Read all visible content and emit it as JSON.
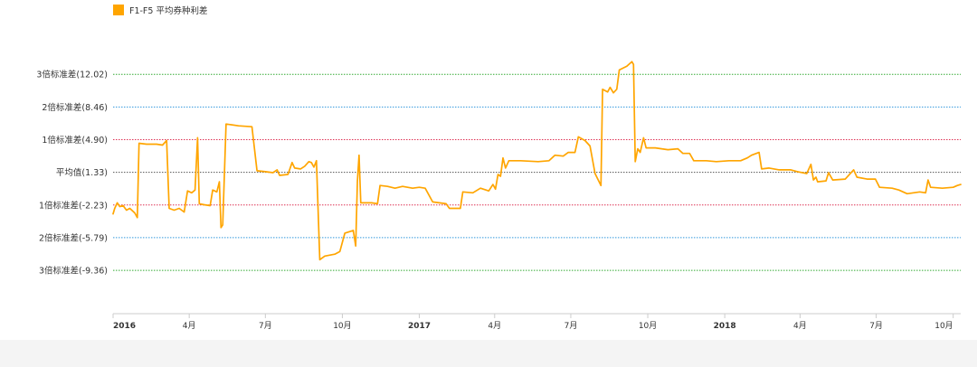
{
  "legend": {
    "label": "F1-F5 平均券种利差",
    "color": "#FFA500"
  },
  "chart_data": {
    "type": "line",
    "title": "",
    "xlabel": "",
    "ylabel": "",
    "ylim": [
      -13,
      15
    ],
    "grid": false,
    "legend_position": "top-left",
    "x_ticks": [
      {
        "label": "2016",
        "date": "2016-01-01",
        "year": true
      },
      {
        "label": "4月",
        "date": "2016-04-01",
        "year": false
      },
      {
        "label": "7月",
        "date": "2016-07-01",
        "year": false
      },
      {
        "label": "10月",
        "date": "2016-10-01",
        "year": false
      },
      {
        "label": "2017",
        "date": "2017-01-01",
        "year": true
      },
      {
        "label": "4月",
        "date": "2017-04-01",
        "year": false
      },
      {
        "label": "7月",
        "date": "2017-07-01",
        "year": false
      },
      {
        "label": "10月",
        "date": "2017-10-01",
        "year": false
      },
      {
        "label": "2018",
        "date": "2018-01-01",
        "year": true
      },
      {
        "label": "4月",
        "date": "2018-04-01",
        "year": false
      },
      {
        "label": "7月",
        "date": "2018-07-01",
        "year": false
      },
      {
        "label": "10月",
        "date": "2018-10-01",
        "year": false
      }
    ],
    "reference_lines": [
      {
        "label": "3倍标准差(12.02)",
        "value": 12.02,
        "color": "#33AA33"
      },
      {
        "label": "2倍标准差(8.46)",
        "value": 8.46,
        "color": "#3399DD"
      },
      {
        "label": "1倍标准差(4.90)",
        "value": 4.9,
        "color": "#DD3355"
      },
      {
        "label": "平均值(1.33)",
        "value": 1.33,
        "color": "#555555"
      },
      {
        "label": "1倍标准差(-2.23)",
        "value": -2.23,
        "color": "#DD3355"
      },
      {
        "label": "2倍标准差(-5.79)",
        "value": -5.79,
        "color": "#3399DD"
      },
      {
        "label": "3倍标准差(-9.36)",
        "value": -9.36,
        "color": "#33AA33"
      }
    ],
    "series": [
      {
        "color": "#FFA500",
        "points": [
          [
            "2016-01-01",
            -3.2
          ],
          [
            "2016-01-03",
            -2.6
          ],
          [
            "2016-01-06",
            -2.0
          ],
          [
            "2016-01-09",
            -2.4
          ],
          [
            "2016-01-13",
            -2.3
          ],
          [
            "2016-01-17",
            -2.8
          ],
          [
            "2016-01-21",
            -2.6
          ],
          [
            "2016-01-27",
            -3.1
          ],
          [
            "2016-01-30",
            -3.6
          ],
          [
            "2016-02-01",
            4.5
          ],
          [
            "2016-02-10",
            4.4
          ],
          [
            "2016-02-22",
            4.4
          ],
          [
            "2016-02-29",
            4.3
          ],
          [
            "2016-03-05",
            4.8
          ],
          [
            "2016-03-08",
            -2.6
          ],
          [
            "2016-03-14",
            -2.8
          ],
          [
            "2016-03-20",
            -2.6
          ],
          [
            "2016-03-26",
            -3.0
          ],
          [
            "2016-03-30",
            -0.7
          ],
          [
            "2016-04-04",
            -0.9
          ],
          [
            "2016-04-08",
            -0.6
          ],
          [
            "2016-04-11",
            5.1
          ],
          [
            "2016-04-13",
            -2.1
          ],
          [
            "2016-04-19",
            -2.2
          ],
          [
            "2016-04-26",
            -2.3
          ],
          [
            "2016-04-29",
            -0.6
          ],
          [
            "2016-05-04",
            -0.8
          ],
          [
            "2016-05-07",
            0.3
          ],
          [
            "2016-05-09",
            -4.7
          ],
          [
            "2016-05-11",
            -4.4
          ],
          [
            "2016-05-15",
            6.6
          ],
          [
            "2016-05-30",
            6.4
          ],
          [
            "2016-06-15",
            6.3
          ],
          [
            "2016-06-21",
            1.5
          ],
          [
            "2016-07-01",
            1.4
          ],
          [
            "2016-07-10",
            1.3
          ],
          [
            "2016-07-15",
            1.6
          ],
          [
            "2016-07-18",
            1.0
          ],
          [
            "2016-07-28",
            1.1
          ],
          [
            "2016-08-02",
            2.4
          ],
          [
            "2016-08-05",
            1.8
          ],
          [
            "2016-08-12",
            1.7
          ],
          [
            "2016-08-17",
            2.0
          ],
          [
            "2016-08-22",
            2.5
          ],
          [
            "2016-08-25",
            2.4
          ],
          [
            "2016-08-28",
            1.9
          ],
          [
            "2016-08-31",
            2.6
          ],
          [
            "2016-09-04",
            -8.2
          ],
          [
            "2016-09-10",
            -7.8
          ],
          [
            "2016-09-22",
            -7.6
          ],
          [
            "2016-09-28",
            -7.3
          ],
          [
            "2016-10-04",
            -5.3
          ],
          [
            "2016-10-14",
            -5.0
          ],
          [
            "2016-10-17",
            -6.7
          ],
          [
            "2016-10-19",
            0.4
          ],
          [
            "2016-10-21",
            3.2
          ],
          [
            "2016-10-23",
            -2.0
          ],
          [
            "2016-11-05",
            -2.0
          ],
          [
            "2016-11-12",
            -2.1
          ],
          [
            "2016-11-15",
            -0.1
          ],
          [
            "2016-11-24",
            -0.2
          ],
          [
            "2016-12-03",
            -0.4
          ],
          [
            "2016-12-12",
            -0.2
          ],
          [
            "2016-12-24",
            -0.4
          ],
          [
            "2017-01-01",
            -0.3
          ],
          [
            "2017-01-08",
            -0.4
          ],
          [
            "2017-01-17",
            -1.9
          ],
          [
            "2017-02-02",
            -2.1
          ],
          [
            "2017-02-06",
            -2.6
          ],
          [
            "2017-02-19",
            -2.6
          ],
          [
            "2017-02-22",
            -0.8
          ],
          [
            "2017-03-06",
            -0.9
          ],
          [
            "2017-03-15",
            -0.4
          ],
          [
            "2017-03-25",
            -0.7
          ],
          [
            "2017-03-30",
            0.0
          ],
          [
            "2017-04-02",
            -0.5
          ],
          [
            "2017-04-05",
            1.1
          ],
          [
            "2017-04-08",
            0.9
          ],
          [
            "2017-04-11",
            2.9
          ],
          [
            "2017-04-14",
            1.8
          ],
          [
            "2017-04-18",
            2.6
          ],
          [
            "2017-05-02",
            2.6
          ],
          [
            "2017-05-23",
            2.5
          ],
          [
            "2017-06-05",
            2.6
          ],
          [
            "2017-06-12",
            3.2
          ],
          [
            "2017-06-22",
            3.1
          ],
          [
            "2017-06-28",
            3.5
          ],
          [
            "2017-07-06",
            3.5
          ],
          [
            "2017-07-10",
            5.2
          ],
          [
            "2017-07-18",
            4.8
          ],
          [
            "2017-07-24",
            4.2
          ],
          [
            "2017-07-30",
            1.2
          ],
          [
            "2017-08-06",
            -0.1
          ],
          [
            "2017-08-08",
            10.4
          ],
          [
            "2017-08-14",
            10.1
          ],
          [
            "2017-08-17",
            10.6
          ],
          [
            "2017-08-21",
            10.0
          ],
          [
            "2017-08-25",
            10.4
          ],
          [
            "2017-08-28",
            12.5
          ],
          [
            "2017-09-06",
            12.9
          ],
          [
            "2017-09-12",
            13.4
          ],
          [
            "2017-09-14",
            13.1
          ],
          [
            "2017-09-16",
            2.5
          ],
          [
            "2017-09-19",
            3.9
          ],
          [
            "2017-09-22",
            3.5
          ],
          [
            "2017-09-26",
            5.1
          ],
          [
            "2017-09-29",
            4.0
          ],
          [
            "2017-10-10",
            4.0
          ],
          [
            "2017-10-25",
            3.8
          ],
          [
            "2017-11-06",
            3.9
          ],
          [
            "2017-11-12",
            3.4
          ],
          [
            "2017-11-20",
            3.4
          ],
          [
            "2017-11-25",
            2.6
          ],
          [
            "2017-12-10",
            2.6
          ],
          [
            "2017-12-22",
            2.5
          ],
          [
            "2018-01-06",
            2.6
          ],
          [
            "2018-01-20",
            2.6
          ],
          [
            "2018-01-28",
            2.9
          ],
          [
            "2018-02-02",
            3.2
          ],
          [
            "2018-02-11",
            3.5
          ],
          [
            "2018-02-14",
            1.7
          ],
          [
            "2018-02-23",
            1.8
          ],
          [
            "2018-03-07",
            1.6
          ],
          [
            "2018-03-21",
            1.6
          ],
          [
            "2018-03-29",
            1.4
          ],
          [
            "2018-04-09",
            1.2
          ],
          [
            "2018-04-14",
            2.2
          ],
          [
            "2018-04-17",
            0.5
          ],
          [
            "2018-04-20",
            0.8
          ],
          [
            "2018-04-22",
            0.3
          ],
          [
            "2018-05-02",
            0.4
          ],
          [
            "2018-05-05",
            1.3
          ],
          [
            "2018-05-10",
            0.5
          ],
          [
            "2018-05-25",
            0.6
          ],
          [
            "2018-06-04",
            1.6
          ],
          [
            "2018-06-08",
            0.8
          ],
          [
            "2018-06-20",
            0.6
          ],
          [
            "2018-06-30",
            0.6
          ],
          [
            "2018-07-05",
            -0.3
          ],
          [
            "2018-07-20",
            -0.4
          ],
          [
            "2018-07-28",
            -0.6
          ],
          [
            "2018-08-07",
            -1.0
          ],
          [
            "2018-08-22",
            -0.8
          ],
          [
            "2018-08-29",
            -0.9
          ],
          [
            "2018-09-01",
            0.5
          ],
          [
            "2018-09-04",
            -0.3
          ],
          [
            "2018-09-18",
            -0.4
          ],
          [
            "2018-10-01",
            -0.3
          ],
          [
            "2018-10-06",
            -0.1
          ],
          [
            "2018-10-10",
            0.0
          ]
        ]
      }
    ]
  }
}
